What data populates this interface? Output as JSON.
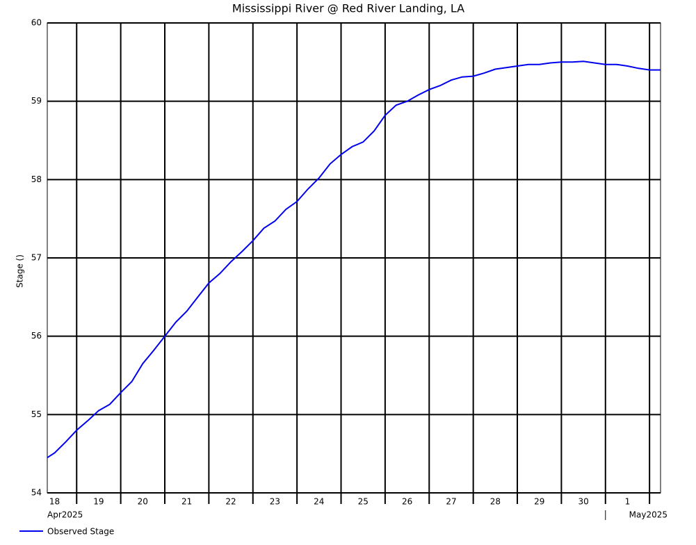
{
  "chart_data": {
    "type": "line",
    "title": "Mississippi River @ Red River Landing, LA",
    "y_label": "Stage ()",
    "x": [
      "2025-04-18T08:00",
      "2025-04-18T12:00",
      "2025-04-18T18:00",
      "2025-04-19T00:00",
      "2025-04-19T06:00",
      "2025-04-19T12:00",
      "2025-04-19T18:00",
      "2025-04-20T00:00",
      "2025-04-20T06:00",
      "2025-04-20T12:00",
      "2025-04-20T18:00",
      "2025-04-21T00:00",
      "2025-04-21T06:00",
      "2025-04-21T12:00",
      "2025-04-21T18:00",
      "2025-04-22T00:00",
      "2025-04-22T06:00",
      "2025-04-22T12:00",
      "2025-04-22T18:00",
      "2025-04-23T00:00",
      "2025-04-23T06:00",
      "2025-04-23T12:00",
      "2025-04-23T18:00",
      "2025-04-24T00:00",
      "2025-04-24T06:00",
      "2025-04-24T12:00",
      "2025-04-24T18:00",
      "2025-04-25T00:00",
      "2025-04-25T06:00",
      "2025-04-25T12:00",
      "2025-04-25T18:00",
      "2025-04-26T00:00",
      "2025-04-26T06:00",
      "2025-04-26T12:00",
      "2025-04-26T18:00",
      "2025-04-27T00:00",
      "2025-04-27T06:00",
      "2025-04-27T12:00",
      "2025-04-27T18:00",
      "2025-04-28T00:00",
      "2025-04-28T06:00",
      "2025-04-28T12:00",
      "2025-04-28T18:00",
      "2025-04-29T00:00",
      "2025-04-29T06:00",
      "2025-04-29T12:00",
      "2025-04-29T18:00",
      "2025-04-30T00:00",
      "2025-04-30T06:00",
      "2025-04-30T12:00",
      "2025-04-30T18:00",
      "2025-05-01T00:00",
      "2025-05-01T06:00",
      "2025-05-01T12:00",
      "2025-05-01T18:00",
      "2025-05-02T00:00",
      "2025-05-02T06:00"
    ],
    "series": [
      {
        "name": "Observed Stage",
        "color": "#0000ee",
        "values": [
          54.45,
          54.51,
          54.65,
          54.8,
          54.92,
          55.05,
          55.13,
          55.28,
          55.42,
          55.65,
          55.82,
          56.0,
          56.18,
          56.32,
          56.5,
          56.68,
          56.8,
          56.95,
          57.08,
          57.22,
          57.38,
          57.47,
          57.62,
          57.72,
          57.88,
          58.02,
          58.2,
          58.32,
          58.42,
          58.48,
          58.62,
          58.82,
          58.95,
          59.0,
          59.08,
          59.15,
          59.2,
          59.27,
          59.31,
          59.32,
          59.36,
          59.41,
          59.43,
          59.45,
          59.47,
          59.47,
          59.49,
          59.5,
          59.5,
          59.51,
          59.49,
          59.47,
          59.47,
          59.45,
          59.42,
          59.4,
          59.4
        ]
      }
    ],
    "xlim": [
      "2025-04-18T08:00",
      "2025-05-02T06:00"
    ],
    "xticks": [
      "2025-04-19",
      "2025-04-20",
      "2025-04-21",
      "2025-04-22",
      "2025-04-23",
      "2025-04-24",
      "2025-04-25",
      "2025-04-26",
      "2025-04-27",
      "2025-04-28",
      "2025-04-29",
      "2025-04-30",
      "2025-05-01",
      "2025-05-02"
    ],
    "day_labels": [
      {
        "value": "2025-04-18",
        "label": "18"
      },
      {
        "value": "2025-04-19",
        "label": "19"
      },
      {
        "value": "2025-04-20",
        "label": "20"
      },
      {
        "value": "2025-04-21",
        "label": "21"
      },
      {
        "value": "2025-04-22",
        "label": "22"
      },
      {
        "value": "2025-04-23",
        "label": "23"
      },
      {
        "value": "2025-04-24",
        "label": "24"
      },
      {
        "value": "2025-04-25",
        "label": "25"
      },
      {
        "value": "2025-04-26",
        "label": "26"
      },
      {
        "value": "2025-04-27",
        "label": "27"
      },
      {
        "value": "2025-04-28",
        "label": "28"
      },
      {
        "value": "2025-04-29",
        "label": "29"
      },
      {
        "value": "2025-04-30",
        "label": "30"
      },
      {
        "value": "2025-05-01",
        "label": "1"
      }
    ],
    "month_labels": [
      "Apr2025",
      "May2025"
    ],
    "ylim": [
      54,
      60
    ],
    "yticks": [
      54,
      55,
      56,
      57,
      58,
      59,
      60
    ],
    "grid": true
  }
}
